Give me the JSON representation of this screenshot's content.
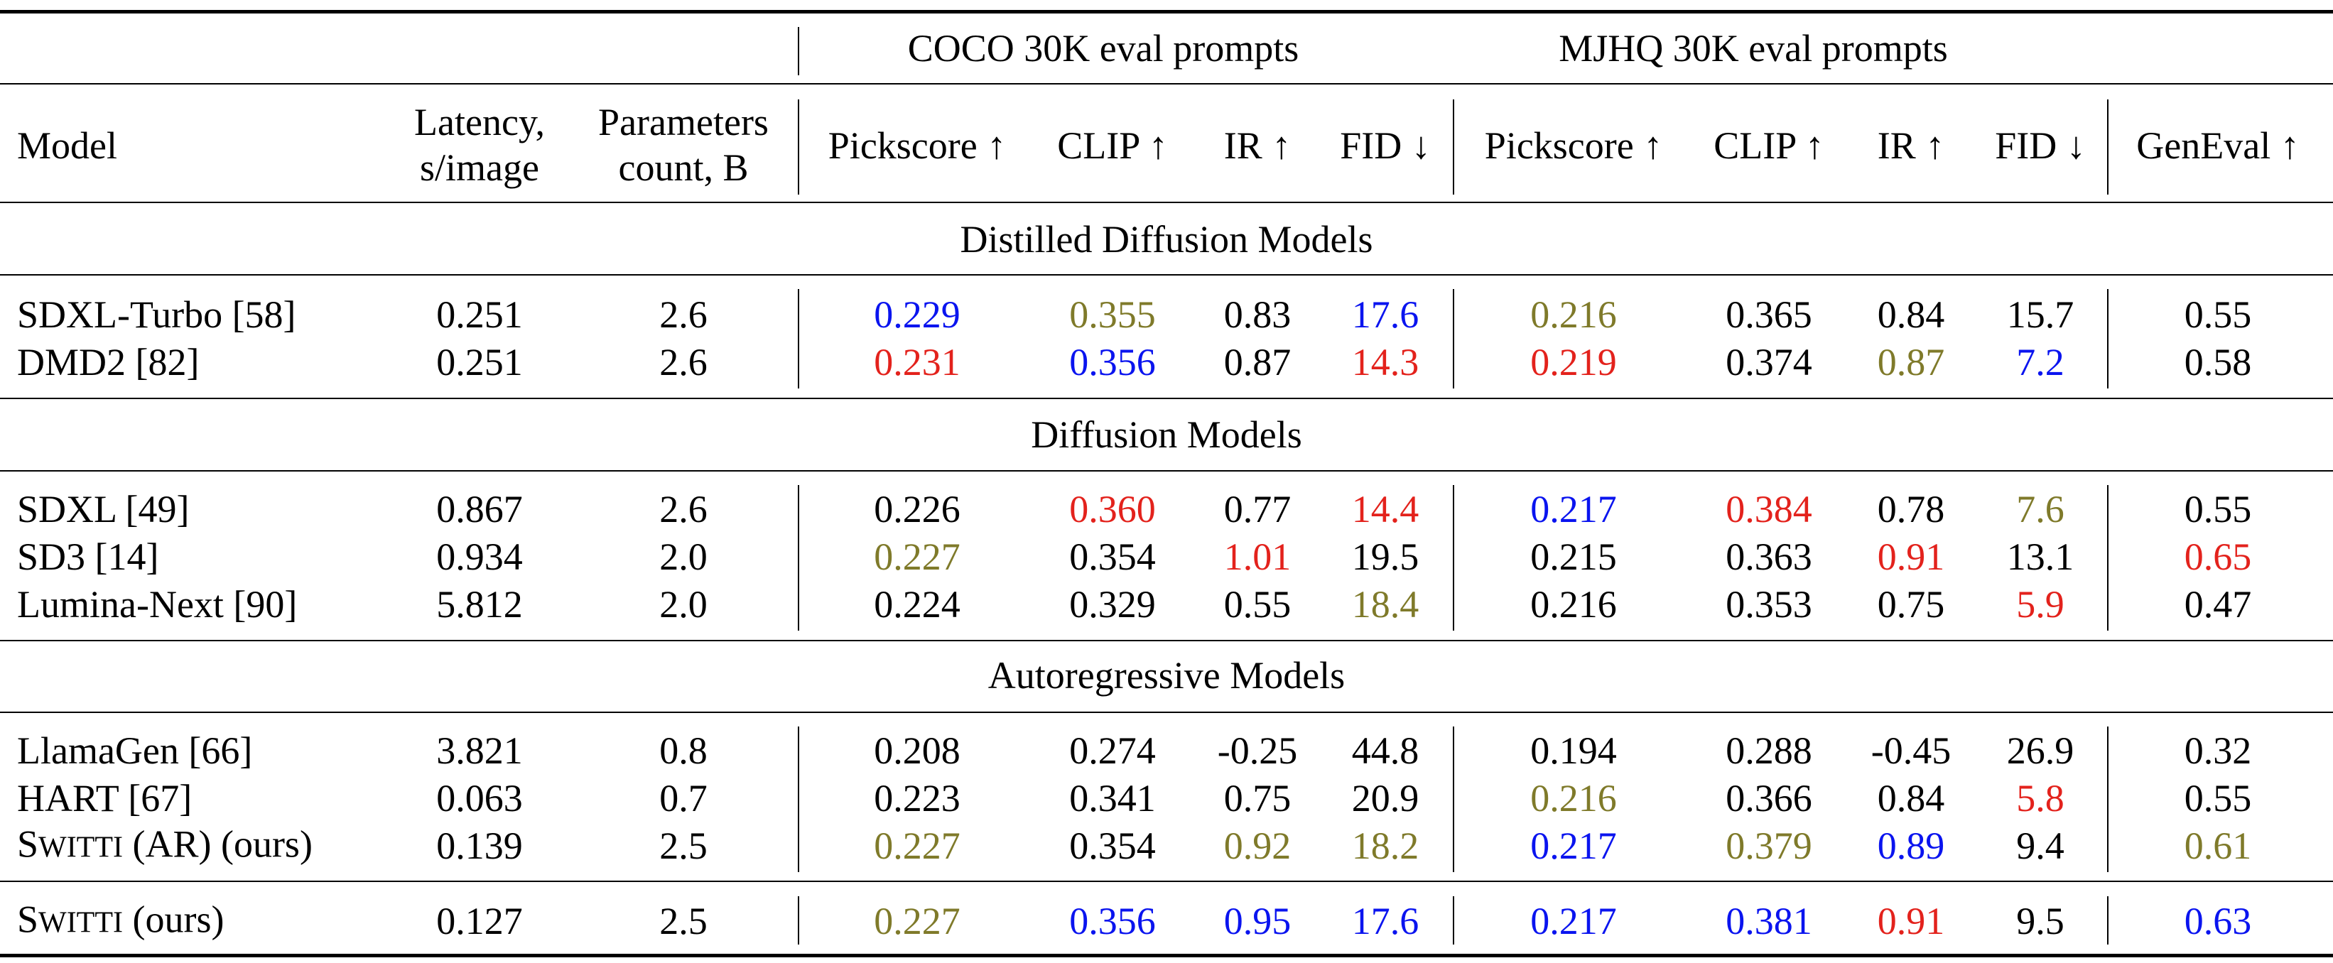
{
  "table": {
    "group_headers": {
      "coco": "COCO 30K eval prompts",
      "mjhq": "MJHQ 30K eval prompts"
    },
    "columns": {
      "model": "Model",
      "latency": [
        "Latency,",
        "s/image"
      ],
      "params": [
        "Parameters",
        "count, B"
      ],
      "coco_pick": "Pickscore ↑",
      "coco_clip": "CLIP ↑",
      "coco_ir": "IR ↑",
      "coco_fid": "FID ↓",
      "mjhq_pick": "Pickscore ↑",
      "mjhq_clip": "CLIP ↑",
      "mjhq_ir": "IR ↑",
      "mjhq_fid": "FID ↓",
      "geneval": "GenEval ↑"
    },
    "colors": {
      "black": "#000000",
      "blue": "#0a14ef",
      "red": "#e3221c",
      "olive": "#7f7a2a"
    },
    "sections": [
      {
        "title": "Distilled Diffusion Models",
        "rows": [
          {
            "model": "SDXL-Turbo [58]",
            "cells": [
              {
                "v": "0.251",
                "c": "black"
              },
              {
                "v": "2.6",
                "c": "black"
              },
              {
                "v": "0.229",
                "c": "blue"
              },
              {
                "v": "0.355",
                "c": "olive"
              },
              {
                "v": "0.83",
                "c": "black"
              },
              {
                "v": "17.6",
                "c": "blue"
              },
              {
                "v": "0.216",
                "c": "olive"
              },
              {
                "v": "0.365",
                "c": "black"
              },
              {
                "v": "0.84",
                "c": "black"
              },
              {
                "v": "15.7",
                "c": "black"
              },
              {
                "v": "0.55",
                "c": "black"
              }
            ]
          },
          {
            "model": "DMD2 [82]",
            "cells": [
              {
                "v": "0.251",
                "c": "black"
              },
              {
                "v": "2.6",
                "c": "black"
              },
              {
                "v": "0.231",
                "c": "red"
              },
              {
                "v": "0.356",
                "c": "blue"
              },
              {
                "v": "0.87",
                "c": "black"
              },
              {
                "v": "14.3",
                "c": "red"
              },
              {
                "v": "0.219",
                "c": "red"
              },
              {
                "v": "0.374",
                "c": "black"
              },
              {
                "v": "0.87",
                "c": "olive"
              },
              {
                "v": "7.2",
                "c": "blue"
              },
              {
                "v": "0.58",
                "c": "black"
              }
            ]
          }
        ]
      },
      {
        "title": "Diffusion Models",
        "rows": [
          {
            "model": "SDXL [49]",
            "cells": [
              {
                "v": "0.867",
                "c": "black"
              },
              {
                "v": "2.6",
                "c": "black"
              },
              {
                "v": "0.226",
                "c": "black"
              },
              {
                "v": "0.360",
                "c": "red"
              },
              {
                "v": "0.77",
                "c": "black"
              },
              {
                "v": "14.4",
                "c": "red"
              },
              {
                "v": "0.217",
                "c": "blue"
              },
              {
                "v": "0.384",
                "c": "red"
              },
              {
                "v": "0.78",
                "c": "black"
              },
              {
                "v": "7.6",
                "c": "olive"
              },
              {
                "v": "0.55",
                "c": "black"
              }
            ]
          },
          {
            "model": "SD3 [14]",
            "cells": [
              {
                "v": "0.934",
                "c": "black"
              },
              {
                "v": "2.0",
                "c": "black"
              },
              {
                "v": "0.227",
                "c": "olive"
              },
              {
                "v": "0.354",
                "c": "black"
              },
              {
                "v": "1.01",
                "c": "red"
              },
              {
                "v": "19.5",
                "c": "black"
              },
              {
                "v": "0.215",
                "c": "black"
              },
              {
                "v": "0.363",
                "c": "black"
              },
              {
                "v": "0.91",
                "c": "red"
              },
              {
                "v": "13.1",
                "c": "black"
              },
              {
                "v": "0.65",
                "c": "red"
              }
            ]
          },
          {
            "model": "Lumina-Next [90]",
            "cells": [
              {
                "v": "5.812",
                "c": "black"
              },
              {
                "v": "2.0",
                "c": "black"
              },
              {
                "v": "0.224",
                "c": "black"
              },
              {
                "v": "0.329",
                "c": "black"
              },
              {
                "v": "0.55",
                "c": "black"
              },
              {
                "v": "18.4",
                "c": "olive"
              },
              {
                "v": "0.216",
                "c": "black"
              },
              {
                "v": "0.353",
                "c": "black"
              },
              {
                "v": "0.75",
                "c": "black"
              },
              {
                "v": "5.9",
                "c": "red"
              },
              {
                "v": "0.47",
                "c": "black"
              }
            ]
          }
        ]
      },
      {
        "title": "Autoregressive Models",
        "rows": [
          {
            "model": "LlamaGen [66]",
            "cells": [
              {
                "v": "3.821",
                "c": "black"
              },
              {
                "v": "0.8",
                "c": "black"
              },
              {
                "v": "0.208",
                "c": "black"
              },
              {
                "v": "0.274",
                "c": "black"
              },
              {
                "v": "-0.25",
                "c": "black"
              },
              {
                "v": "44.8",
                "c": "black"
              },
              {
                "v": "0.194",
                "c": "black"
              },
              {
                "v": "0.288",
                "c": "black"
              },
              {
                "v": "-0.45",
                "c": "black"
              },
              {
                "v": "26.9",
                "c": "black"
              },
              {
                "v": "0.32",
                "c": "black"
              }
            ]
          },
          {
            "model": "HART [67]",
            "cells": [
              {
                "v": "0.063",
                "c": "black"
              },
              {
                "v": "0.7",
                "c": "black"
              },
              {
                "v": "0.223",
                "c": "black"
              },
              {
                "v": "0.341",
                "c": "black"
              },
              {
                "v": "0.75",
                "c": "black"
              },
              {
                "v": "20.9",
                "c": "black"
              },
              {
                "v": "0.216",
                "c": "olive"
              },
              {
                "v": "0.366",
                "c": "black"
              },
              {
                "v": "0.84",
                "c": "black"
              },
              {
                "v": "5.8",
                "c": "red"
              },
              {
                "v": "0.55",
                "c": "black"
              }
            ]
          },
          {
            "model": "SWITTI (AR) (ours)",
            "cells": [
              {
                "v": "0.139",
                "c": "black"
              },
              {
                "v": "2.5",
                "c": "black"
              },
              {
                "v": "0.227",
                "c": "olive"
              },
              {
                "v": "0.354",
                "c": "black"
              },
              {
                "v": "0.92",
                "c": "olive"
              },
              {
                "v": "18.2",
                "c": "olive"
              },
              {
                "v": "0.217",
                "c": "blue"
              },
              {
                "v": "0.379",
                "c": "olive"
              },
              {
                "v": "0.89",
                "c": "blue"
              },
              {
                "v": "9.4",
                "c": "black"
              },
              {
                "v": "0.61",
                "c": "olive"
              }
            ]
          }
        ]
      },
      {
        "title": "",
        "rows": [
          {
            "model": "SWITTI (ours)",
            "cells": [
              {
                "v": "0.127",
                "c": "black"
              },
              {
                "v": "2.5",
                "c": "black"
              },
              {
                "v": "0.227",
                "c": "olive"
              },
              {
                "v": "0.356",
                "c": "blue"
              },
              {
                "v": "0.95",
                "c": "blue"
              },
              {
                "v": "17.6",
                "c": "blue"
              },
              {
                "v": "0.217",
                "c": "blue"
              },
              {
                "v": "0.381",
                "c": "blue"
              },
              {
                "v": "0.91",
                "c": "red"
              },
              {
                "v": "9.5",
                "c": "black"
              },
              {
                "v": "0.63",
                "c": "blue"
              }
            ]
          }
        ]
      }
    ]
  }
}
